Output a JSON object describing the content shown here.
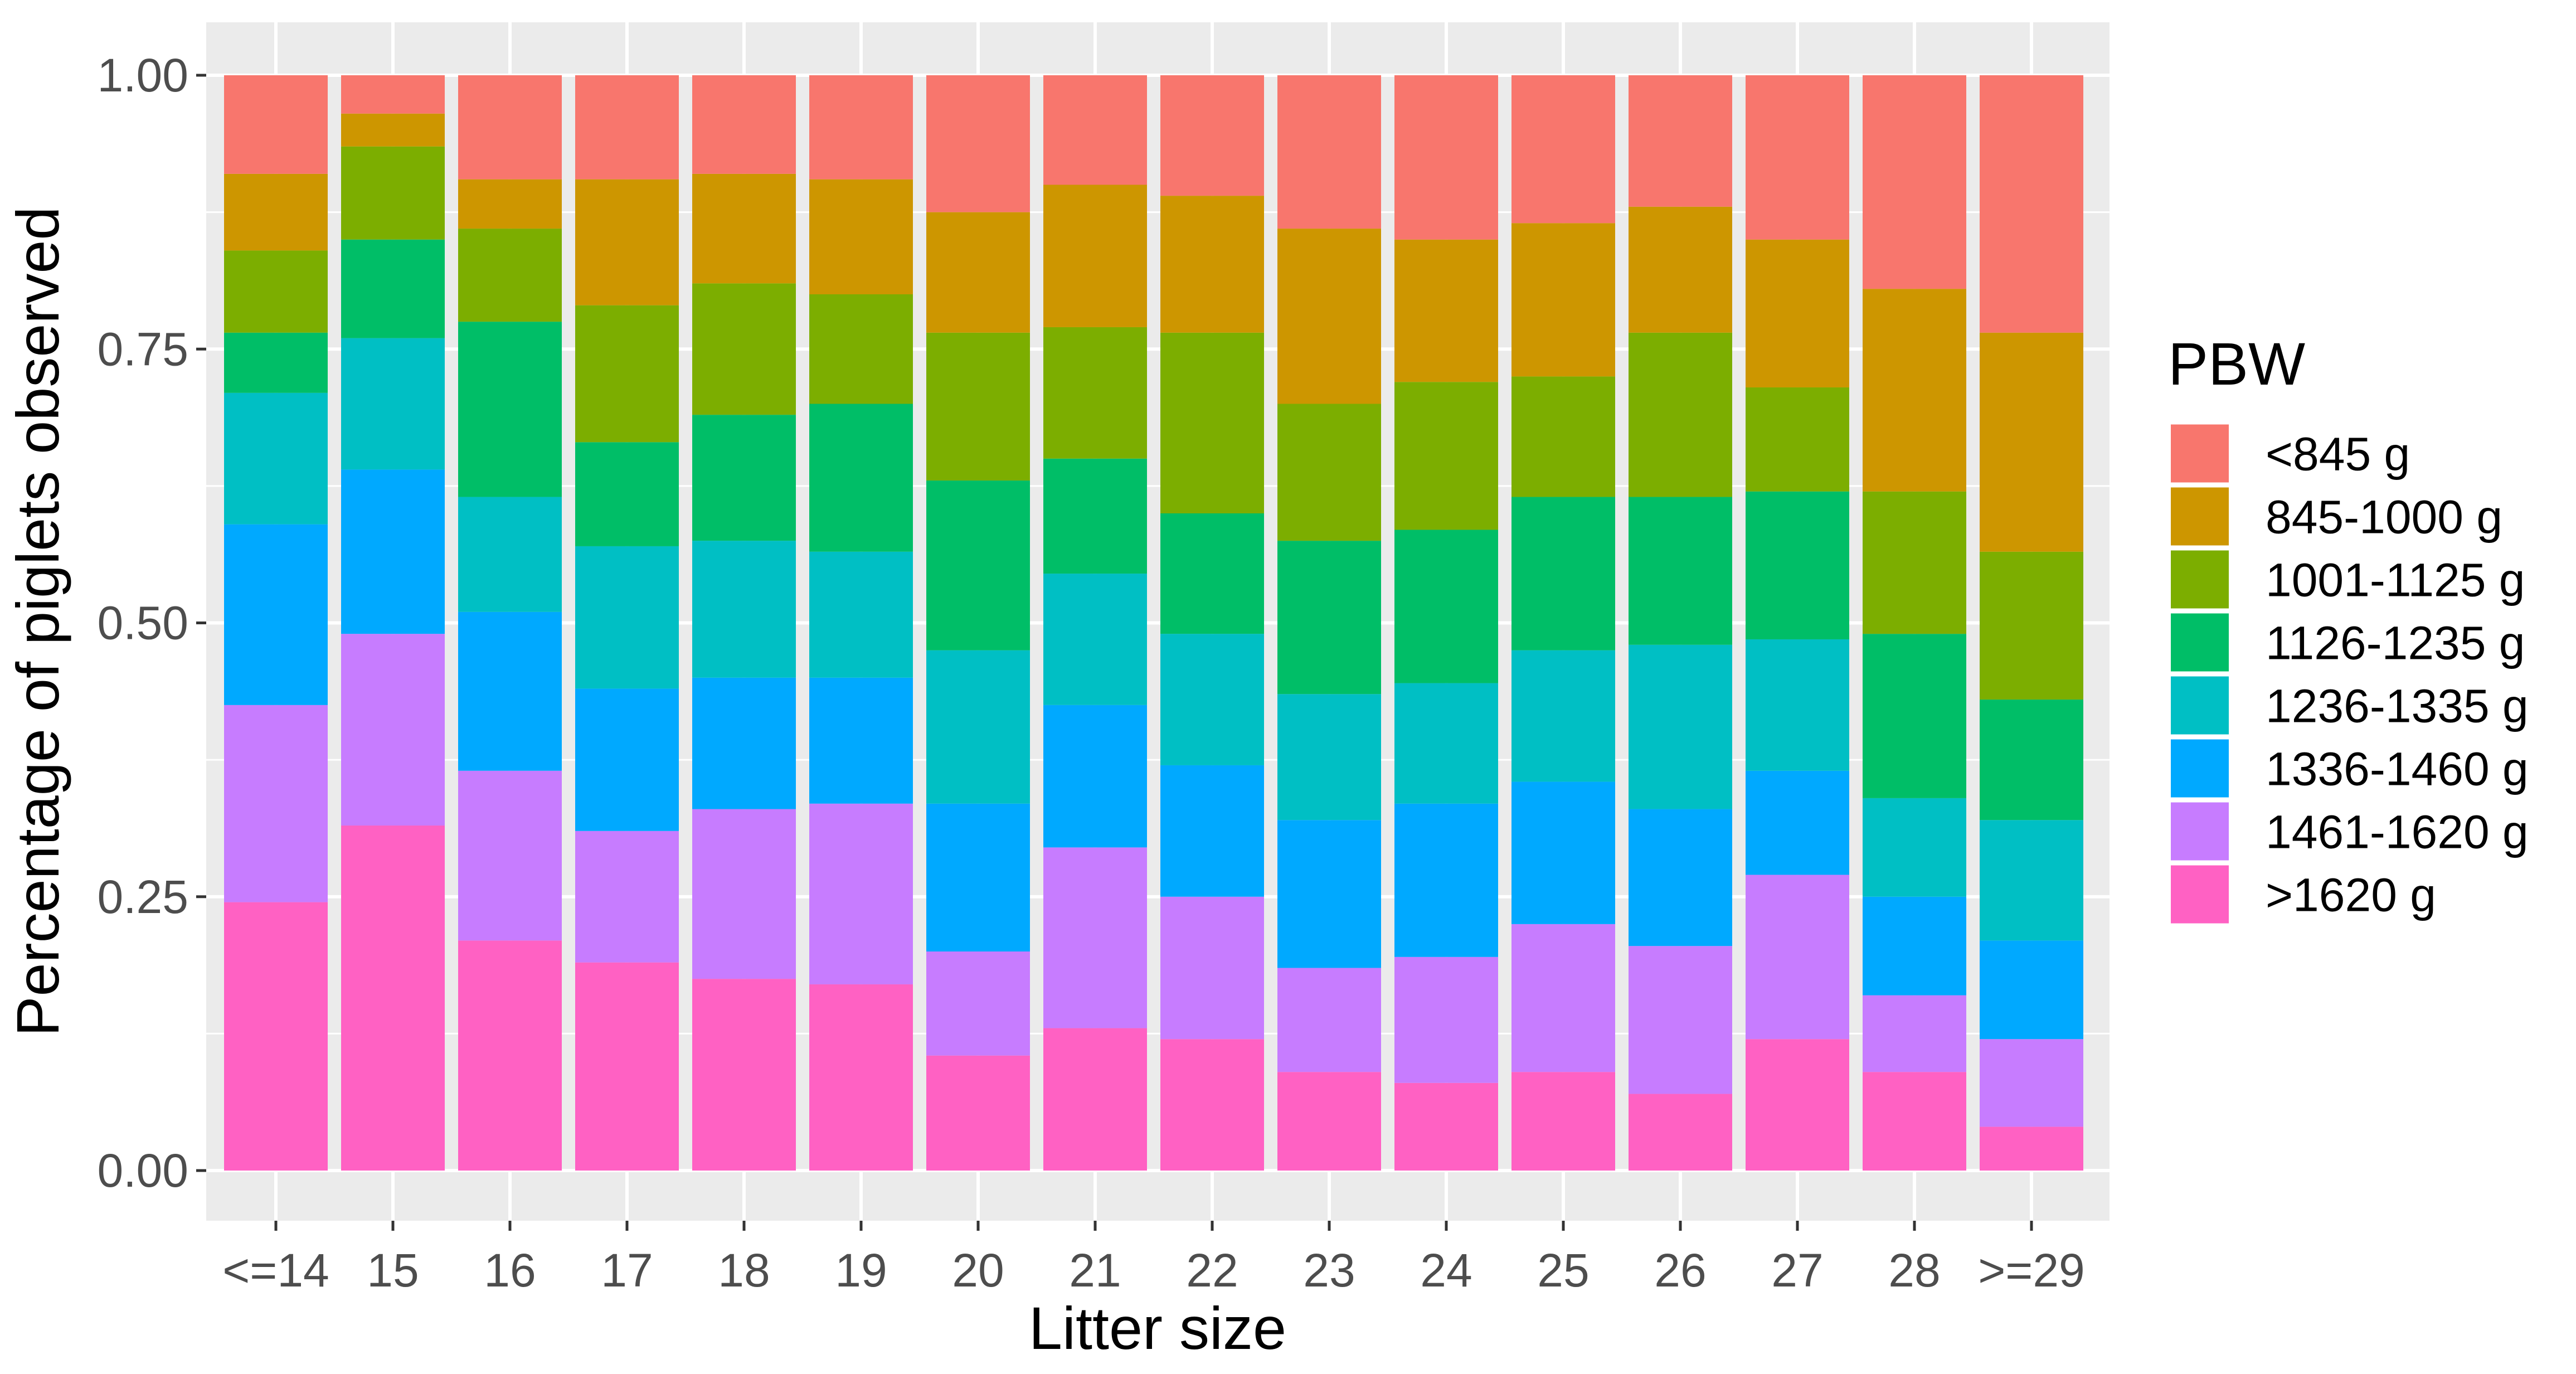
{
  "chart_data": {
    "type": "bar",
    "stacked": true,
    "normalized": true,
    "title": "",
    "xlabel": "Litter size",
    "ylabel": "Percentage of piglets observed",
    "ylim": [
      0,
      1
    ],
    "yticks": [
      "0.00",
      "0.25",
      "0.50",
      "0.75",
      "1.00"
    ],
    "grid": true,
    "legend_position": "right",
    "legend_title": "PBW",
    "categories": [
      "<=14",
      "15",
      "16",
      "17",
      "18",
      "19",
      "20",
      "21",
      "22",
      "23",
      "24",
      "25",
      "26",
      "27",
      "28",
      ">=29"
    ],
    "series": [
      {
        "name": ">1620 g",
        "color": "#FF61C3",
        "values": [
          0.245,
          0.315,
          0.21,
          0.19,
          0.175,
          0.17,
          0.105,
          0.13,
          0.12,
          0.09,
          0.08,
          0.09,
          0.07,
          0.12,
          0.09,
          0.04
        ]
      },
      {
        "name": "1461-1620 g",
        "color": "#C77CFF",
        "values": [
          0.18,
          0.175,
          0.155,
          0.12,
          0.155,
          0.165,
          0.095,
          0.165,
          0.13,
          0.095,
          0.115,
          0.135,
          0.135,
          0.15,
          0.07,
          0.08
        ]
      },
      {
        "name": "1336-1460 g",
        "color": "#00A9FF",
        "values": [
          0.165,
          0.15,
          0.145,
          0.13,
          0.12,
          0.115,
          0.135,
          0.13,
          0.12,
          0.135,
          0.14,
          0.13,
          0.125,
          0.095,
          0.09,
          0.09
        ]
      },
      {
        "name": "1236-1335 g",
        "color": "#00BFC4",
        "values": [
          0.12,
          0.12,
          0.105,
          0.13,
          0.125,
          0.115,
          0.14,
          0.12,
          0.12,
          0.115,
          0.11,
          0.12,
          0.15,
          0.12,
          0.09,
          0.11
        ]
      },
      {
        "name": "1126-1235 g",
        "color": "#00BE67",
        "values": [
          0.055,
          0.09,
          0.16,
          0.095,
          0.115,
          0.135,
          0.155,
          0.105,
          0.11,
          0.14,
          0.14,
          0.14,
          0.135,
          0.135,
          0.15,
          0.11
        ]
      },
      {
        "name": "1001-1125 g",
        "color": "#7CAE00",
        "values": [
          0.075,
          0.085,
          0.085,
          0.125,
          0.12,
          0.1,
          0.135,
          0.12,
          0.165,
          0.125,
          0.135,
          0.11,
          0.15,
          0.095,
          0.13,
          0.135
        ]
      },
      {
        "name": "845-1000 g",
        "color": "#CD9600",
        "values": [
          0.07,
          0.03,
          0.045,
          0.115,
          0.1,
          0.105,
          0.11,
          0.13,
          0.125,
          0.16,
          0.13,
          0.14,
          0.115,
          0.135,
          0.185,
          0.2
        ]
      },
      {
        "name": "<845 g",
        "color": "#F8766D",
        "values": [
          0.09,
          0.035,
          0.095,
          0.095,
          0.09,
          0.095,
          0.125,
          0.1,
          0.11,
          0.14,
          0.15,
          0.135,
          0.12,
          0.15,
          0.195,
          0.235
        ]
      }
    ]
  }
}
